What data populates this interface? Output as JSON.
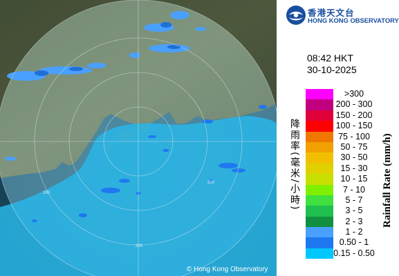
{
  "map": {
    "range_ring_labels": [
      "200",
      "200",
      "200"
    ],
    "copyright": "© Hong Kong Observatory"
  },
  "header": {
    "org_name_zh": "香港天文台",
    "org_name_en": "HONG KONG OBSERVATORY",
    "time": "08:42 HKT",
    "date": "30-10-2025"
  },
  "legend": {
    "title_en": "Rainfall Rate (mm/h)",
    "title_zh": "降雨率(毫米/小時)",
    "items": [
      {
        "label": ">300",
        "color": "#ff00ff"
      },
      {
        "label": "200 - 300",
        "color": "#c0007f"
      },
      {
        "label": "150 - 200",
        "color": "#e0003a"
      },
      {
        "label": "100 - 150",
        "color": "#ff0000"
      },
      {
        "label": "75 - 100",
        "color": "#f07800"
      },
      {
        "label": "50 - 75",
        "color": "#f0a000"
      },
      {
        "label": "30 - 50",
        "color": "#f0c000"
      },
      {
        "label": "15 - 30",
        "color": "#e0d000"
      },
      {
        "label": "10 - 15",
        "color": "#c8e000"
      },
      {
        "label": "7 - 10",
        "color": "#80f000"
      },
      {
        "label": "5 - 7",
        "color": "#40e040"
      },
      {
        "label": "3 - 5",
        "color": "#20c050"
      },
      {
        "label": "2 - 3",
        "color": "#109040"
      },
      {
        "label": "1 - 2",
        "color": "#4aa0ff"
      },
      {
        "label": "0.50 - 1",
        "color": "#1e78f0"
      },
      {
        "label": "0.15 - 0.50",
        "color": "#00c8ff"
      }
    ]
  }
}
